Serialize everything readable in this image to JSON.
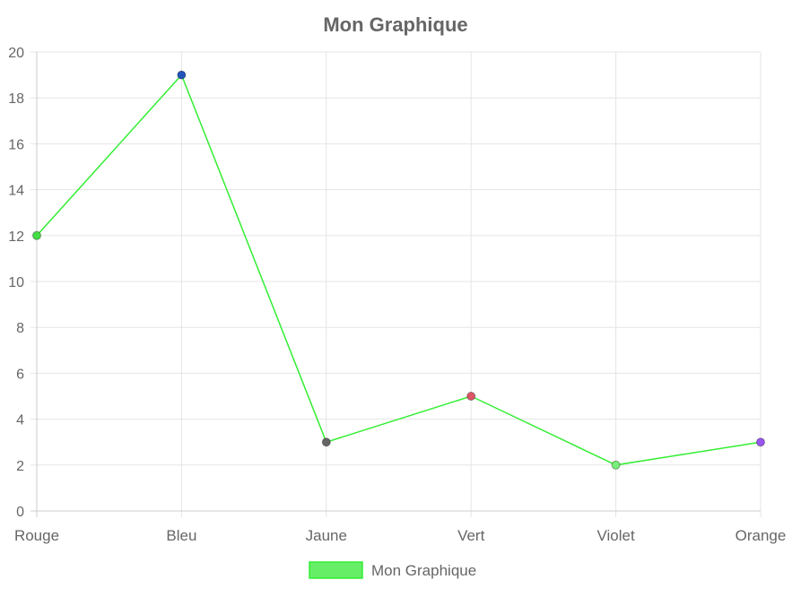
{
  "chart_data": {
    "type": "line",
    "title": "Mon Graphique",
    "categories": [
      "Rouge",
      "Bleu",
      "Jaune",
      "Vert",
      "Violet",
      "Orange"
    ],
    "series": [
      {
        "name": "Mon Graphique",
        "values": [
          12,
          19,
          3,
          5,
          2,
          3
        ],
        "line_color": "#33ee33",
        "legend_fill": "#66ee66",
        "point_colors": [
          "#44dd44",
          "#2255bb",
          "#666666",
          "#dd5566",
          "#77ee77",
          "#9955ee"
        ]
      }
    ],
    "ylim": [
      0,
      20
    ],
    "yticks": [
      0,
      2,
      4,
      6,
      8,
      10,
      12,
      14,
      16,
      18,
      20
    ],
    "grid": true,
    "legend_position": "bottom"
  }
}
